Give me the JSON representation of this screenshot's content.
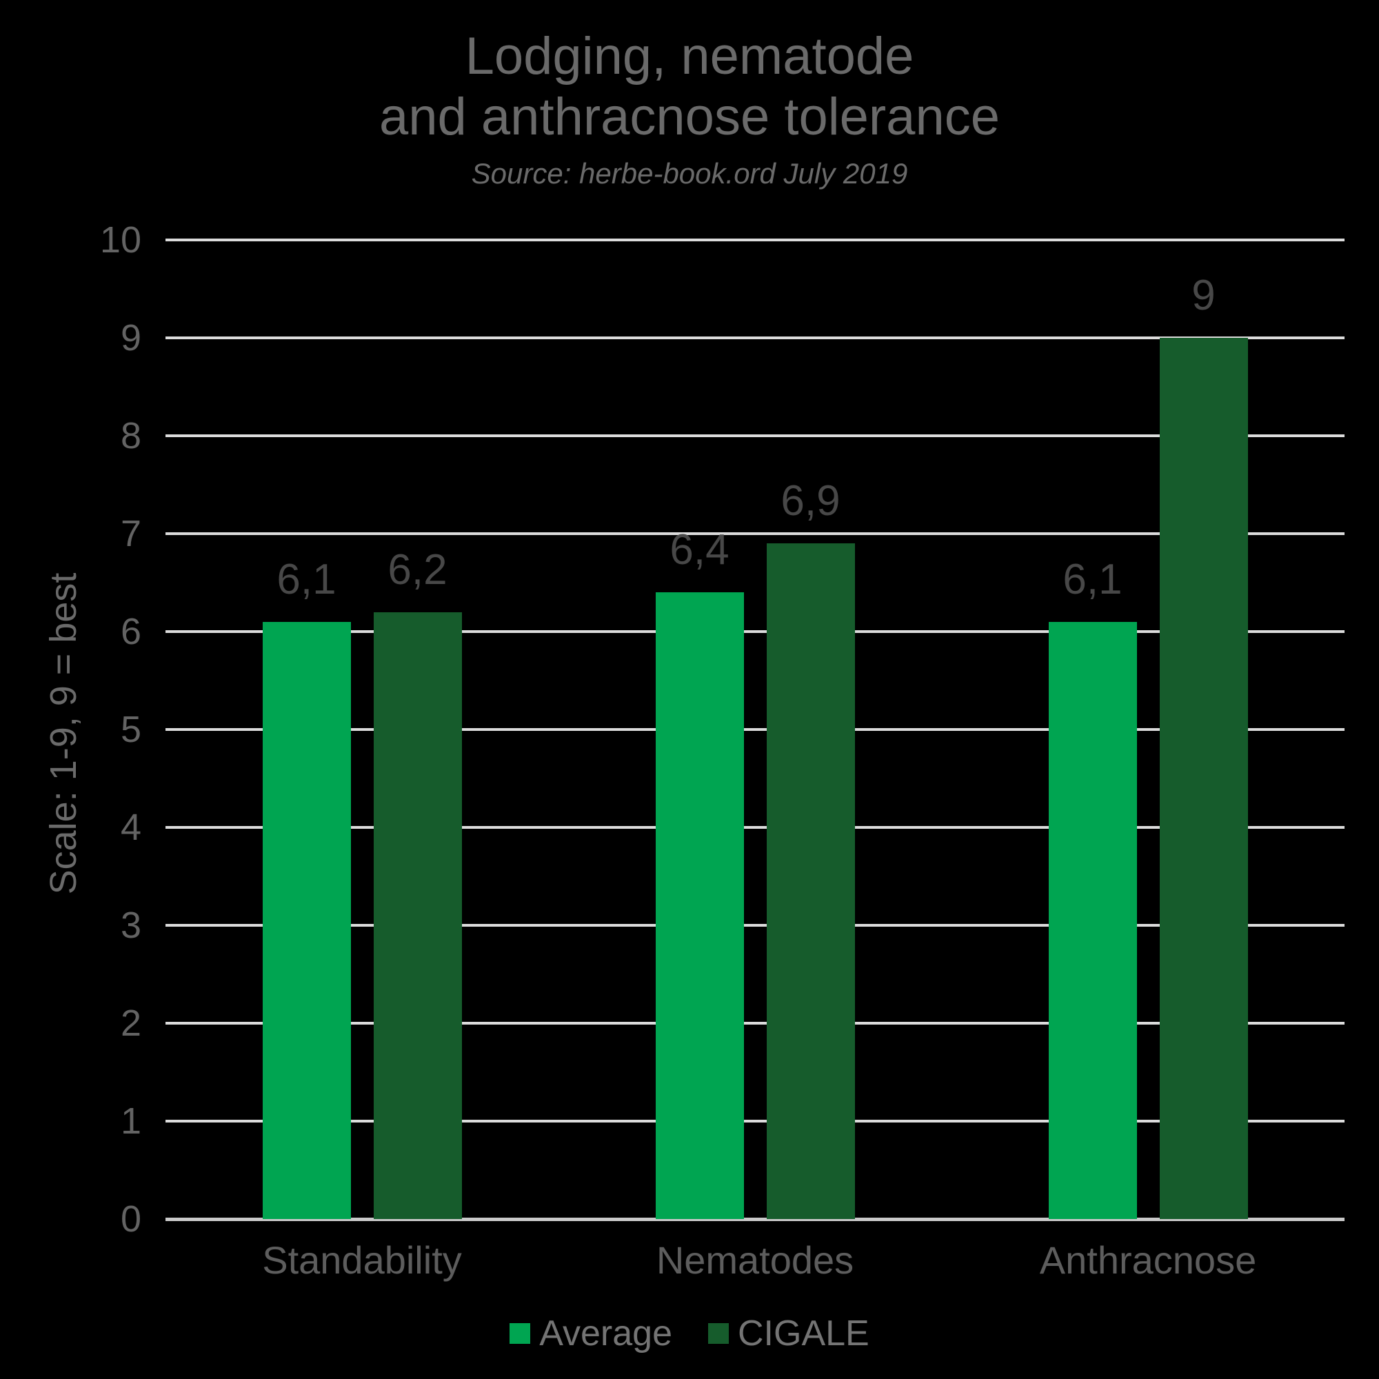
{
  "title": {
    "line1": "Lodging, nematode",
    "line2": "and anthracnose tolerance",
    "subtitle": "Source: herbe-book.ord July 2019"
  },
  "chart_data": {
    "type": "bar",
    "categories": [
      "Standability",
      "Nematodes",
      "Anthracnose"
    ],
    "series": [
      {
        "name": "Average",
        "color": "#00a551",
        "values": [
          6.1,
          6.4,
          6.1
        ],
        "value_labels": [
          "6,1",
          "6,4",
          "6,1"
        ]
      },
      {
        "name": "CIGALE",
        "color": "#165c2c",
        "values": [
          6.2,
          6.9,
          9.0
        ],
        "value_labels": [
          "6,2",
          "6,9",
          "9"
        ]
      }
    ],
    "ylabel": "Scale: 1-9, 9 = best",
    "ylim": [
      0,
      10
    ],
    "yticks": [
      0,
      1,
      2,
      3,
      4,
      5,
      6,
      7,
      8,
      9,
      10
    ],
    "grid": true,
    "legend_position": "bottom"
  },
  "colors": {
    "background": "#000000",
    "gridline": "#dcdcdc",
    "axis_line": "#c9c9c9",
    "title_text": "#6a6a6a",
    "tick_text": "#636363",
    "category_text": "#5d5d5d",
    "data_label_text": "#484848",
    "legend_text": "#747474",
    "series_average": "#00a551",
    "series_cigale": "#165c2c"
  }
}
